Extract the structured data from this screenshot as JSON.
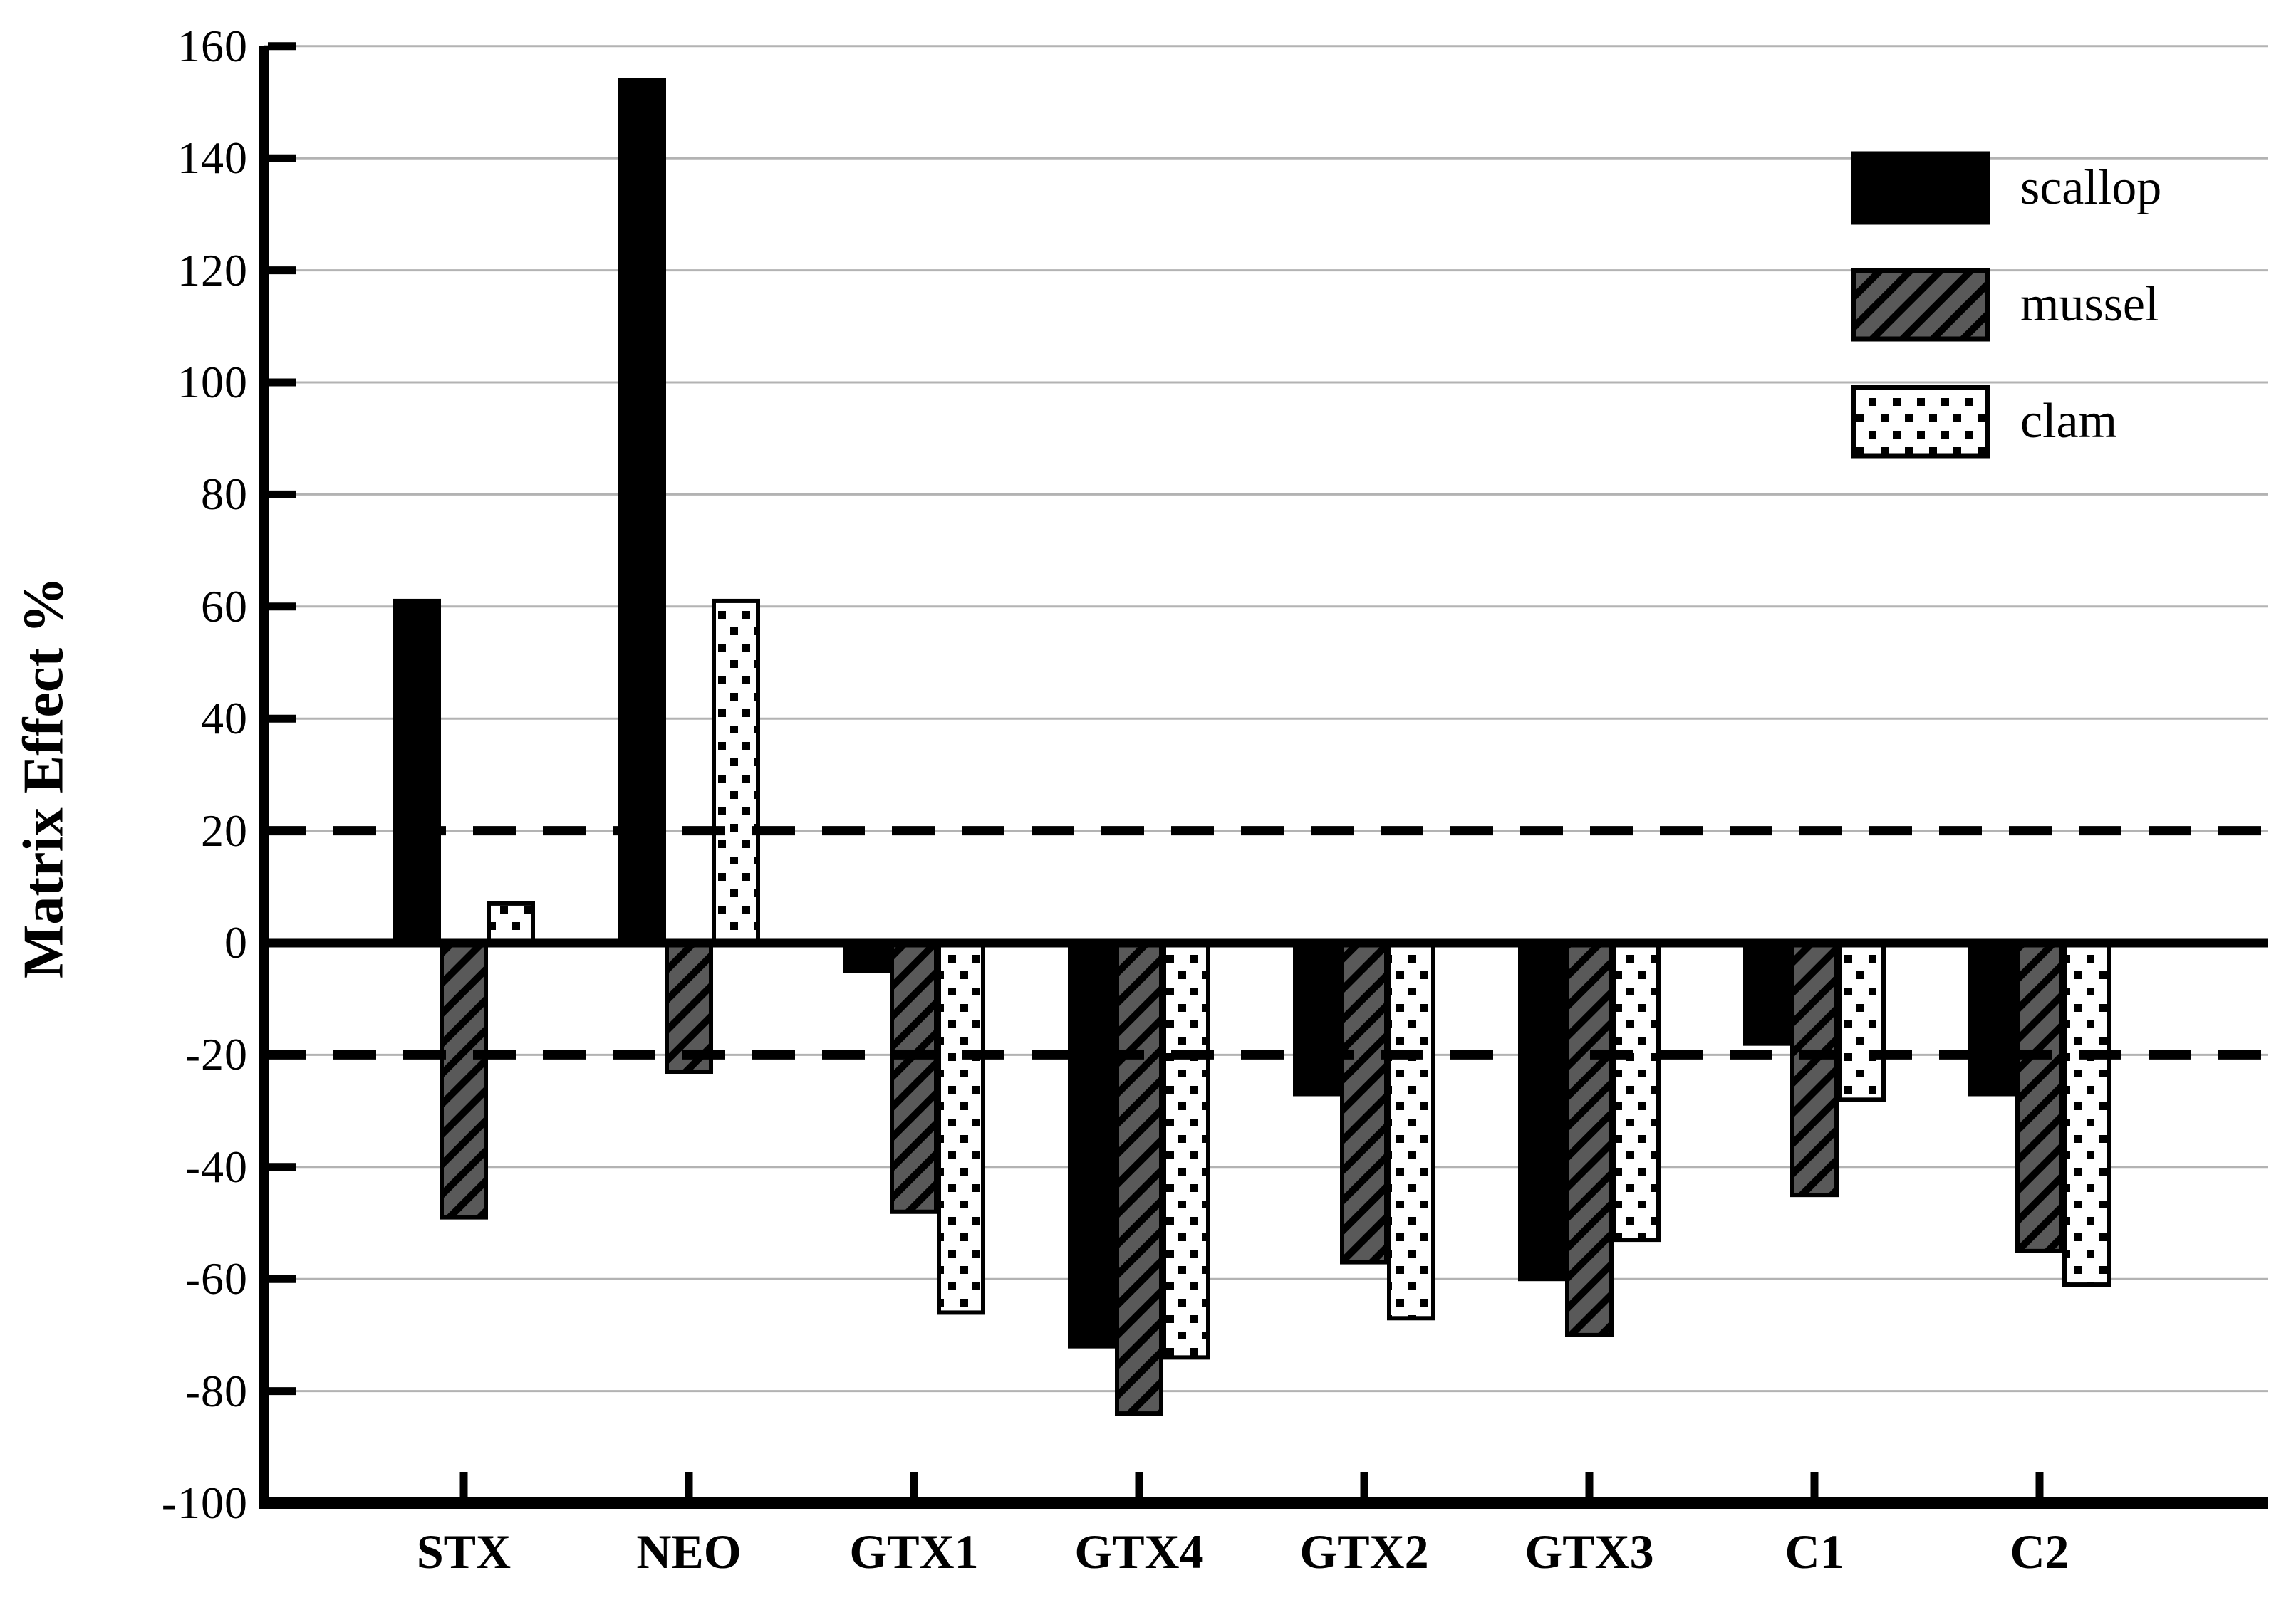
{
  "chart_data": {
    "type": "bar",
    "title": "",
    "ylabel": "Matrix Effect %",
    "xlabel": "",
    "categories": [
      "STX",
      "NEO",
      "GTX1",
      "GTX4",
      "GTX2",
      "GTX3",
      "C1",
      "C2"
    ],
    "series": [
      {
        "name": "scallop",
        "pattern": "solid",
        "fill": "#000000",
        "values": [
          61,
          154,
          -5,
          -72,
          -27,
          -60,
          -18,
          -27
        ]
      },
      {
        "name": "mussel",
        "pattern": "diagonal-hatch",
        "fill": "#595959",
        "values": [
          -49,
          -23,
          -48,
          -84,
          -57,
          -70,
          -45,
          -55
        ]
      },
      {
        "name": "clam",
        "pattern": "square-dots",
        "fill": "#ffffff",
        "values": [
          7,
          61,
          -66,
          -74,
          -67,
          -53,
          -28,
          -61
        ]
      }
    ],
    "y_axis": {
      "min": -100,
      "max": 160,
      "tick_step": 20,
      "ticks": [
        160,
        140,
        120,
        100,
        80,
        60,
        40,
        20,
        0,
        -20,
        -40,
        -60,
        -80,
        -100
      ]
    },
    "reference_lines": {
      "solid_at": 0,
      "dashed_at": [
        20,
        -20
      ]
    },
    "legend": {
      "position": "top-right"
    },
    "grid": true,
    "colors": {
      "axis": "#000000",
      "gridline": "#b3b3b3",
      "background": "#ffffff",
      "bar_outline": "#000000",
      "hatch_fill": "#595959",
      "dots_fill": "#ffffff"
    }
  }
}
